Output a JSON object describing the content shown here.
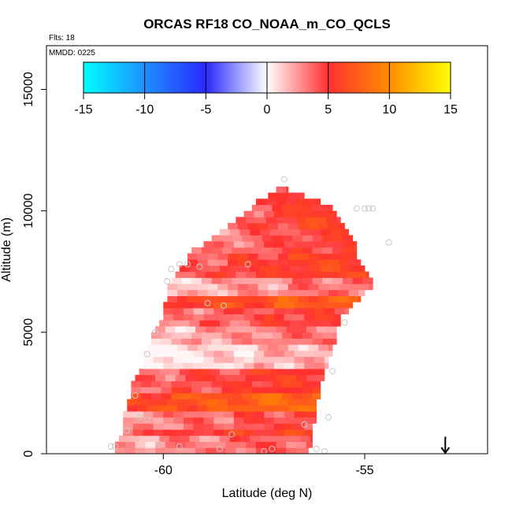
{
  "chart_data": {
    "type": "heatmap",
    "title": "ORCAS RF18 CO_NOAA_m_CO_QCLS",
    "flights_label": "Flts: 18",
    "date_label": "MMDD: 0225",
    "xlabel": "Latitude (deg N)",
    "ylabel": "Altitude (m)",
    "xlim": [
      -62.9,
      -51.95
    ],
    "ylim": [
      0,
      16800
    ],
    "x_ticks": [
      -60,
      -55
    ],
    "x_tick_labels": [
      "-60",
      "-55"
    ],
    "y_ticks": [
      0,
      5000,
      10000,
      15000
    ],
    "y_tick_labels": [
      "0",
      "5000",
      "10000",
      "15000"
    ],
    "colorbar": {
      "ticks": [
        -15,
        -10,
        -5,
        0,
        5,
        10,
        15
      ],
      "tick_labels": [
        "-15",
        "-10",
        "-5",
        "0",
        "5",
        "10",
        "15"
      ],
      "colors": [
        {
          "v": -15,
          "c": "#00ffff"
        },
        {
          "v": -10,
          "c": "#1e90ff"
        },
        {
          "v": -5,
          "c": "#2929ff"
        },
        {
          "v": 0,
          "c": "#ffffff"
        },
        {
          "v": 5,
          "c": "#ff3030"
        },
        {
          "v": 10,
          "c": "#ff8c00"
        },
        {
          "v": 15,
          "c": "#ffff00"
        }
      ]
    },
    "cell_size": {
      "dlat": 0.25,
      "dalt": 250
    },
    "profile": [
      [
        250,
        -61.2,
        -56.4
      ],
      [
        500,
        -61.2,
        -56.3
      ],
      [
        750,
        -61.1,
        -56.3
      ],
      [
        1000,
        -61.0,
        -56.3
      ],
      [
        1250,
        -61.0,
        -56.3
      ],
      [
        1500,
        -61.0,
        -56.2
      ],
      [
        1750,
        -61.0,
        -56.2
      ],
      [
        2000,
        -60.9,
        -56.2
      ],
      [
        2250,
        -60.9,
        -56.2
      ],
      [
        2500,
        -60.8,
        -56.1
      ],
      [
        2750,
        -60.8,
        -56.1
      ],
      [
        3000,
        -60.8,
        -56.1
      ],
      [
        3250,
        -60.7,
        -56.0
      ],
      [
        3500,
        -60.6,
        -56.0
      ],
      [
        3750,
        -60.5,
        -55.9
      ],
      [
        4000,
        -60.5,
        -55.9
      ],
      [
        4250,
        -60.5,
        -55.8
      ],
      [
        4500,
        -60.4,
        -55.8
      ],
      [
        4750,
        -60.3,
        -55.7
      ],
      [
        5000,
        -60.3,
        -55.7
      ],
      [
        5250,
        -60.2,
        -55.7
      ],
      [
        5500,
        -60.1,
        -55.6
      ],
      [
        5750,
        -60.0,
        -55.6
      ],
      [
        6000,
        -60.0,
        -55.4
      ],
      [
        6250,
        -60.0,
        -55.3
      ],
      [
        6500,
        -59.9,
        -55.1
      ],
      [
        6750,
        -59.9,
        -55.0
      ],
      [
        7000,
        -59.9,
        -54.8
      ],
      [
        7250,
        -59.8,
        -54.8
      ],
      [
        7500,
        -59.7,
        -54.9
      ],
      [
        7750,
        -59.6,
        -55.0
      ],
      [
        8000,
        -59.4,
        -55.1
      ],
      [
        8250,
        -59.4,
        -55.2
      ],
      [
        8500,
        -59.3,
        -55.2
      ],
      [
        8750,
        -59.0,
        -55.2
      ],
      [
        9000,
        -58.8,
        -55.3
      ],
      [
        9250,
        -58.6,
        -55.4
      ],
      [
        9500,
        -58.4,
        -55.5
      ],
      [
        9750,
        -58.2,
        -55.6
      ],
      [
        10000,
        -58.0,
        -55.7
      ],
      [
        10250,
        -57.8,
        -55.8
      ],
      [
        10500,
        -57.7,
        -56.1
      ],
      [
        10750,
        -57.4,
        -56.5
      ],
      [
        11000,
        -57.2,
        -56.9
      ],
      [
        11250,
        -57.0,
        -57.4
      ],
      [
        11500,
        -56.9,
        -57.8
      ]
    ],
    "value_bands": [
      {
        "alt_min": 0,
        "alt_max": 700,
        "value": 3
      },
      {
        "alt_min": 700,
        "alt_max": 1050,
        "value": 5
      },
      {
        "alt_min": 1050,
        "alt_max": 1700,
        "value": 3.5
      },
      {
        "alt_min": 1700,
        "alt_max": 2600,
        "value": 7
      },
      {
        "alt_min": 2600,
        "alt_max": 3400,
        "value": 4.5
      },
      {
        "alt_min": 3400,
        "alt_max": 4400,
        "value": 1
      },
      {
        "alt_min": 4400,
        "alt_max": 5200,
        "value": 2.5
      },
      {
        "alt_min": 5200,
        "alt_max": 5900,
        "value": 4
      },
      {
        "alt_min": 5900,
        "alt_max": 6600,
        "value": 6.5
      },
      {
        "alt_min": 6600,
        "alt_max": 7300,
        "value": 2.5
      },
      {
        "alt_min": 7300,
        "alt_max": 8200,
        "value": 5
      },
      {
        "alt_min": 8200,
        "alt_max": 9200,
        "value": 4
      },
      {
        "alt_min": 9200,
        "alt_max": 11600,
        "value": 5
      }
    ],
    "samples": [
      {
        "lat": -61.3,
        "alt": 300
      },
      {
        "lat": -61.2,
        "alt": 300
      },
      {
        "lat": -60.9,
        "alt": 950
      },
      {
        "lat": -60.7,
        "alt": 2400
      },
      {
        "lat": -60.6,
        "alt": 1500
      },
      {
        "lat": -60.4,
        "alt": 1400
      },
      {
        "lat": -60.4,
        "alt": 4100
      },
      {
        "lat": -60.2,
        "alt": 5000
      },
      {
        "lat": -59.9,
        "alt": 7100
      },
      {
        "lat": -59.8,
        "alt": 7600
      },
      {
        "lat": -59.6,
        "alt": 7800
      },
      {
        "lat": -59.4,
        "alt": 7800
      },
      {
        "lat": -59.1,
        "alt": 7700
      },
      {
        "lat": -58.9,
        "alt": 6200
      },
      {
        "lat": -58.5,
        "alt": 6100
      },
      {
        "lat": -58.6,
        "alt": 200
      },
      {
        "lat": -58.3,
        "alt": 800
      },
      {
        "lat": -57.9,
        "alt": 7800
      },
      {
        "lat": -57.5,
        "alt": 100
      },
      {
        "lat": -57.3,
        "alt": 200
      },
      {
        "lat": -57.0,
        "alt": 11300
      },
      {
        "lat": -56.5,
        "alt": 1200
      },
      {
        "lat": -56.2,
        "alt": 200
      },
      {
        "lat": -56.0,
        "alt": 100
      },
      {
        "lat": -55.9,
        "alt": 1500
      },
      {
        "lat": -55.8,
        "alt": 3400
      },
      {
        "lat": -55.5,
        "alt": 5400
      },
      {
        "lat": -55.2,
        "alt": 10100
      },
      {
        "lat": -55.0,
        "alt": 10100
      },
      {
        "lat": -54.9,
        "alt": 10100
      },
      {
        "lat": -54.8,
        "alt": 10100
      },
      {
        "lat": -54.4,
        "alt": 8700
      },
      {
        "lat": -60.1,
        "alt": 400
      },
      {
        "lat": -59.6,
        "alt": 300
      }
    ],
    "arrow_marker": {
      "lat": -53.0,
      "alt_top": 700,
      "alt_bottom": 0
    }
  }
}
